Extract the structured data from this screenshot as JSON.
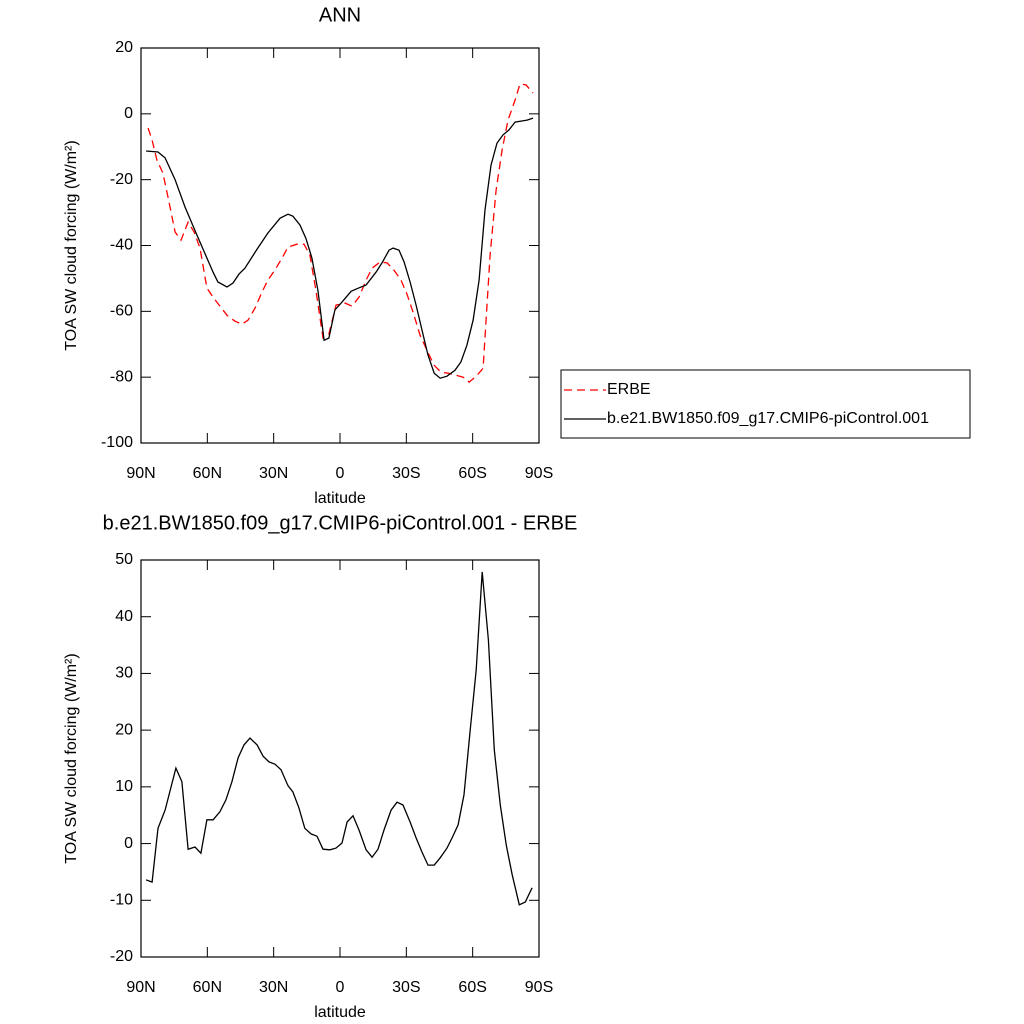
{
  "chart_data": [
    {
      "type": "line",
      "title": "ANN",
      "xlabel": "latitude",
      "ylabel": "TOA SW cloud forcing (W/m²)",
      "xlim": [
        90,
        -90
      ],
      "xticks": [
        {
          "value": 90,
          "label": "90N"
        },
        {
          "value": 60,
          "label": "60N"
        },
        {
          "value": 30,
          "label": "30N"
        },
        0,
        {
          "value": -30,
          "label": "30S"
        },
        {
          "value": -60,
          "label": "60S"
        },
        {
          "value": -90,
          "label": "90S"
        }
      ],
      "ylim": [
        -100,
        20
      ],
      "yticks": [
        -100,
        -80,
        -60,
        -40,
        -20,
        0,
        20
      ],
      "legend": "right",
      "series": [
        {
          "name": "ERBE",
          "color": "#ff0000",
          "style": "dashed",
          "x": [
            86.8,
            85.0,
            82.8,
            80.1,
            77.8,
            74.6,
            71.9,
            68.7,
            66.0,
            63.3,
            60.2,
            57.4,
            54.3,
            51.1,
            47.5,
            44.3,
            41.6,
            38.4,
            35.3,
            32.6,
            29.5,
            26.2,
            23.5,
            19.5,
            16.3,
            13.6,
            10.9,
            7.7,
            5.0,
            1.8,
            -2.3,
            -5.4,
            -8.6,
            -11.8,
            -14.5,
            -18.1,
            -21.3,
            -24.4,
            -27.6,
            -30.3,
            -33.0,
            -36.2,
            -39.3,
            -42.6,
            -45.7,
            -48.9,
            -52.5,
            -55.7,
            -58.4,
            -61.6,
            -64.7,
            -67.9,
            -70.6,
            -73.3,
            -76.0,
            -79.2,
            -81.4,
            -84.1,
            -87.3
          ],
          "values": [
            -4.3,
            -8.0,
            -14.0,
            -18.0,
            -25.3,
            -35.9,
            -38.4,
            -32.9,
            -35.9,
            -40.8,
            -52.9,
            -55.7,
            -58.4,
            -61.2,
            -63.0,
            -63.9,
            -62.7,
            -59.0,
            -54.2,
            -50.5,
            -47.5,
            -43.8,
            -40.5,
            -39.6,
            -39.6,
            -42.9,
            -53.6,
            -68.1,
            -66.9,
            -58.1,
            -57.5,
            -58.4,
            -55.7,
            -50.5,
            -46.9,
            -45.0,
            -45.3,
            -47.5,
            -50.5,
            -54.8,
            -60.2,
            -67.2,
            -71.8,
            -76.4,
            -78.5,
            -78.8,
            -79.4,
            -80.0,
            -81.5,
            -79.7,
            -77.3,
            -42.9,
            -23.2,
            -11.0,
            -1.9,
            4.2,
            9.1,
            8.8,
            6.3
          ]
        },
        {
          "name": "b.e21.BW1850.f09_g17.CMIP6-piControl.001",
          "color": "#000000",
          "style": "solid",
          "x": [
            87.7,
            82.3,
            79.1,
            74.6,
            70.1,
            64.7,
            60.2,
            57.4,
            55.2,
            51.1,
            48.4,
            45.7,
            43.0,
            37.5,
            32.6,
            27.1,
            23.5,
            21.3,
            18.1,
            15.4,
            12.7,
            10.0,
            7.2,
            5.0,
            2.3,
            -0.9,
            -5.0,
            -8.1,
            -11.8,
            -16.3,
            -19.0,
            -22.2,
            -24.0,
            -26.7,
            -29.0,
            -31.7,
            -34.4,
            -37.1,
            -39.8,
            -42.6,
            -45.3,
            -48.4,
            -52.0,
            -54.7,
            -57.4,
            -60.2,
            -62.9,
            -65.6,
            -68.3,
            -71.0,
            -73.7,
            -76.4,
            -79.2,
            -84.6,
            -87.3
          ],
          "values": [
            -11.3,
            -11.6,
            -13.4,
            -20,
            -28.3,
            -36.8,
            -43.8,
            -48.1,
            -51.1,
            -52.6,
            -51.4,
            -48.7,
            -46.9,
            -41.1,
            -36.2,
            -31.7,
            -30.5,
            -31.1,
            -33.8,
            -37.8,
            -43.8,
            -53.6,
            -68.8,
            -68.1,
            -59.6,
            -57.2,
            -53.9,
            -53.0,
            -52.0,
            -48.1,
            -45.3,
            -41.4,
            -40.8,
            -41.4,
            -45.0,
            -51.1,
            -58.1,
            -65.7,
            -73.3,
            -78.8,
            -80.3,
            -79.7,
            -77.9,
            -75.4,
            -70.3,
            -62.7,
            -50.5,
            -29.2,
            -15.6,
            -8.9,
            -6.4,
            -4.9,
            -2.5,
            -1.9,
            -1.3
          ]
        }
      ]
    },
    {
      "type": "line",
      "title": "b.e21.BW1850.f09_g17.CMIP6-piControl.001 - ERBE",
      "xlabel": "latitude",
      "ylabel": "TOA SW cloud forcing (W/m²)",
      "xlim": [
        90,
        -90
      ],
      "xticks": [
        {
          "value": 90,
          "label": "90N"
        },
        {
          "value": 60,
          "label": "60N"
        },
        {
          "value": 30,
          "label": "30N"
        },
        0,
        {
          "value": -30,
          "label": "30S"
        },
        {
          "value": -60,
          "label": "60S"
        },
        {
          "value": -90,
          "label": "90S"
        }
      ],
      "ylim": [
        -20,
        50
      ],
      "yticks": [
        -20,
        -10,
        0,
        10,
        20,
        30,
        40,
        50
      ],
      "series": [
        {
          "color": "#000000",
          "style": "solid",
          "x": [
            87.7,
            85.0,
            82.3,
            79.1,
            74.2,
            71.5,
            68.7,
            65.6,
            62.9,
            60.2,
            57.4,
            54.3,
            51.6,
            48.9,
            46.1,
            43.4,
            40.7,
            37.5,
            34.8,
            32.1,
            29.4,
            26.7,
            23.5,
            21.3,
            18.6,
            15.9,
            13.1,
            10.4,
            7.7,
            4.5,
            1.8,
            -0.9,
            -3.2,
            -5.9,
            -8.6,
            -11.8,
            -14.5,
            -17.2,
            -19.9,
            -23.1,
            -25.8,
            -28.5,
            -31.7,
            -34.4,
            -37.1,
            -39.8,
            -42.6,
            -45.3,
            -48.4,
            -50.7,
            -53.4,
            -56.1,
            -58.9,
            -61.6,
            -64.3,
            -67.1,
            -69.8,
            -72.5,
            -75.2,
            -77.9,
            -81.1,
            -83.8,
            -86.9
          ],
          "values": [
            -6.4,
            -6.8,
            2.7,
            5.9,
            13.3,
            10.9,
            -1.0,
            -0.6,
            -1.7,
            4.2,
            4.2,
            5.6,
            7.7,
            10.9,
            15.1,
            17.4,
            18.6,
            17.4,
            15.4,
            14.4,
            14.0,
            13.0,
            10.2,
            9.1,
            6.3,
            2.7,
            1.7,
            1.3,
            -1.0,
            -1.1,
            -0.8,
            0.1,
            3.8,
            4.9,
            2.4,
            -1.1,
            -2.4,
            -1.0,
            2.4,
            5.9,
            7.3,
            6.8,
            3.8,
            1.0,
            -1.5,
            -3.8,
            -3.8,
            -2.5,
            -0.8,
            1.0,
            3.3,
            8.6,
            20.0,
            30.6,
            47.9,
            35.9,
            16.5,
            6.8,
            -0.3,
            -5.5,
            -10.8,
            -10.3,
            -7.8
          ]
        }
      ]
    }
  ]
}
